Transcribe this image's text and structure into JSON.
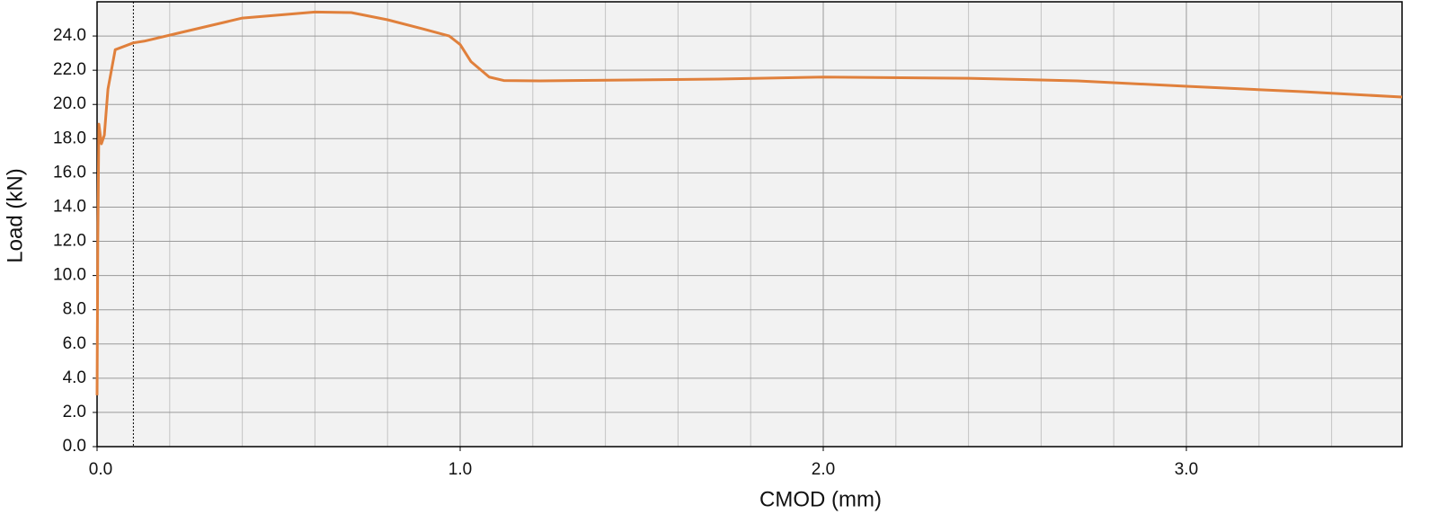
{
  "chart_data": {
    "type": "line",
    "x_label": "CMOD (mm)",
    "y_label": "Load  (kN)",
    "x": [
      0.0,
      0.002,
      0.005,
      0.012,
      0.02,
      0.03,
      0.05,
      0.1,
      0.13,
      0.23,
      0.4,
      0.6,
      0.7,
      0.8,
      0.9,
      0.97,
      1.0,
      1.03,
      1.08,
      1.12,
      1.22,
      1.47,
      1.71,
      2.0,
      2.4,
      2.7,
      3.0,
      3.32,
      3.594
    ],
    "series": [
      {
        "color": "#e0803c",
        "values": [
          3.0,
          12.0,
          18.85,
          17.7,
          18.2,
          20.9,
          23.2,
          23.6,
          23.7,
          24.2,
          25.05,
          25.4,
          25.37,
          24.95,
          24.4,
          24.0,
          23.5,
          22.5,
          21.6,
          21.4,
          21.38,
          21.43,
          21.48,
          21.6,
          21.53,
          21.38,
          21.06,
          20.75,
          20.43
        ]
      }
    ],
    "xlim": [
      0,
      3.594
    ],
    "ylim": [
      0,
      26
    ],
    "xticks": [
      {
        "value": 0,
        "label": "0.0"
      },
      {
        "value": 1,
        "label": "1.0"
      },
      {
        "value": 2,
        "label": "2.0"
      },
      {
        "value": 3,
        "label": "3.0"
      }
    ],
    "xminor": [
      0.2,
      0.4,
      0.6,
      0.8,
      1.2,
      1.4,
      1.6,
      1.8,
      2.2,
      2.4,
      2.6,
      2.8,
      3.2,
      3.4
    ],
    "yticks": [
      {
        "value": 0,
        "label": "0.0"
      },
      {
        "value": 2,
        "label": "2.0"
      },
      {
        "value": 4,
        "label": "4.0"
      },
      {
        "value": 6,
        "label": "6.0"
      },
      {
        "value": 8,
        "label": "8.0"
      },
      {
        "value": 10,
        "label": "10.0"
      },
      {
        "value": 12,
        "label": "12.0"
      },
      {
        "value": 14,
        "label": "14.0"
      },
      {
        "value": 16,
        "label": "16.0"
      },
      {
        "value": 18,
        "label": "18.0"
      },
      {
        "value": 20,
        "label": "20.0"
      },
      {
        "value": 22,
        "label": "22.0"
      },
      {
        "value": 24,
        "label": "24.0"
      }
    ],
    "vline": 0.1,
    "grid": true
  }
}
